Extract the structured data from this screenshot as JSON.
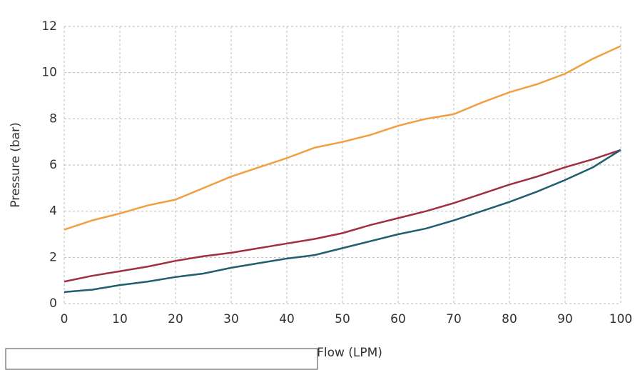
{
  "chart_data": {
    "type": "line",
    "x_label": "Flow (LPM)",
    "y_label": "Pressure (bar)",
    "x": [
      0,
      5,
      10,
      15,
      20,
      25,
      30,
      35,
      40,
      45,
      50,
      55,
      60,
      65,
      70,
      75,
      80,
      85,
      90,
      95,
      100
    ],
    "series": [
      {
        "color": "#f0a040",
        "values": [
          3.2,
          3.6,
          3.9,
          4.25,
          4.5,
          5.0,
          5.5,
          5.9,
          6.3,
          6.75,
          7.0,
          7.3,
          7.7,
          8.0,
          8.2,
          8.7,
          9.15,
          9.5,
          9.95,
          10.6,
          11.15
        ]
      },
      {
        "color": "#a03040",
        "values": [
          0.95,
          1.2,
          1.4,
          1.6,
          1.85,
          2.05,
          2.2,
          2.4,
          2.6,
          2.8,
          3.05,
          3.4,
          3.7,
          4.0,
          4.35,
          4.75,
          5.15,
          5.5,
          5.9,
          6.25,
          6.65
        ]
      },
      {
        "color": "#1f5f6f",
        "values": [
          0.5,
          0.6,
          0.8,
          0.95,
          1.15,
          1.3,
          1.55,
          1.75,
          1.95,
          2.1,
          2.4,
          2.7,
          3.0,
          3.25,
          3.6,
          4.0,
          4.4,
          4.85,
          5.35,
          5.9,
          6.65
        ]
      }
    ],
    "xlim": [
      0,
      100
    ],
    "xticks": [
      0,
      10,
      20,
      30,
      40,
      50,
      60,
      70,
      80,
      90,
      100
    ],
    "ylim": [
      0,
      12
    ],
    "yticks": [
      0,
      2,
      4,
      6,
      8,
      10,
      12
    ],
    "grid": true
  }
}
